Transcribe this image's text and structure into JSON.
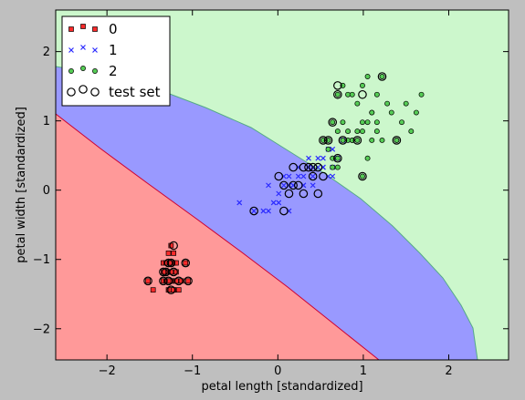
{
  "chart_data": {
    "type": "scatter",
    "title": "",
    "xlabel": "petal length [standardized]",
    "ylabel": "petal width [standardized]",
    "xlim": [
      -2.6,
      2.7
    ],
    "ylim": [
      -2.45,
      2.6
    ],
    "xticks": [
      -2,
      -1,
      0,
      1,
      2
    ],
    "yticks": [
      -2,
      -1,
      0,
      1,
      2
    ],
    "tick_labels_x": [
      "−2",
      "−1",
      "0",
      "1",
      "2"
    ],
    "tick_labels_y": [
      "−2",
      "−1",
      "0",
      "1",
      "2"
    ],
    "grid": false,
    "legend_position": "top-left",
    "decision_regions": [
      {
        "class": "0",
        "color": "#ff9999"
      },
      {
        "class": "1",
        "color": "#9999ff"
      },
      {
        "class": "2",
        "color": "#ccf7cc"
      }
    ],
    "series": [
      {
        "name": "0",
        "marker": "square",
        "color": "#ff2a2a",
        "x": [
          -1.34,
          -1.31,
          -1.28,
          -1.25,
          -1.22,
          -1.19,
          -1.16,
          -1.13,
          -1.28,
          -1.22,
          -1.31,
          -1.25,
          -1.19,
          -1.22,
          -1.28,
          -1.34,
          -1.25,
          -1.19,
          -1.28,
          -1.22,
          -1.25,
          -1.16,
          -1.52,
          -1.46,
          -1.05,
          -1.08,
          -1.25,
          -1.28,
          -1.22,
          -1.25,
          -1.19,
          -1.31,
          -1.34,
          -1.25,
          -1.22,
          -1.28
        ],
        "y": [
          -1.31,
          -1.31,
          -1.31,
          -1.31,
          -1.31,
          -1.31,
          -1.31,
          -1.31,
          -1.18,
          -1.18,
          -1.18,
          -1.18,
          -1.18,
          -1.05,
          -1.05,
          -1.05,
          -1.05,
          -1.05,
          -1.44,
          -1.44,
          -1.44,
          -1.44,
          -1.31,
          -1.44,
          -1.31,
          -1.05,
          -0.8,
          -0.91,
          -0.91,
          -1.18,
          -1.31,
          -1.05,
          -1.18,
          -1.31,
          -1.44,
          -1.31
        ]
      },
      {
        "name": "1",
        "marker": "x",
        "color": "#2a2aff",
        "x": [
          -0.45,
          -0.28,
          -0.17,
          -0.11,
          -0.05,
          0.01,
          0.07,
          0.13,
          0.18,
          0.24,
          0.3,
          0.36,
          0.41,
          0.47,
          0.53,
          0.59,
          0.64,
          0.7,
          0.76,
          0.13,
          0.24,
          0.36,
          0.47,
          0.59,
          0.3,
          0.41,
          0.53,
          0.64,
          0.07,
          0.18,
          0.3,
          0.41,
          0.53,
          0.64,
          -0.11,
          0.01,
          0.13
        ],
        "y": [
          -0.18,
          -0.3,
          -0.3,
          0.07,
          -0.18,
          -0.18,
          0.07,
          -0.3,
          0.07,
          0.2,
          0.07,
          0.33,
          0.2,
          0.46,
          0.33,
          0.59,
          0.2,
          0.46,
          0.72,
          0.2,
          0.33,
          0.46,
          0.33,
          0.2,
          0.07,
          0.07,
          0.33,
          0.33,
          0.2,
          0.07,
          0.2,
          0.33,
          0.46,
          0.59,
          -0.3,
          -0.05,
          0.07
        ]
      },
      {
        "name": "2",
        "marker": "circle",
        "color": "#55cc55",
        "x": [
          0.7,
          0.76,
          0.82,
          0.87,
          0.93,
          0.99,
          1.05,
          1.1,
          1.16,
          1.22,
          1.28,
          1.33,
          1.39,
          1.45,
          1.5,
          1.56,
          1.62,
          1.68,
          0.64,
          0.7,
          0.76,
          0.82,
          0.87,
          0.93,
          0.99,
          1.05,
          1.1,
          1.16,
          0.59,
          0.64,
          0.7,
          0.76,
          0.82,
          0.87,
          0.93,
          0.99,
          1.05,
          1.1,
          1.16,
          1.22,
          0.53,
          0.59,
          0.64,
          0.7,
          1.39,
          0.99
        ],
        "y": [
          1.38,
          1.51,
          1.38,
          1.38,
          1.25,
          1.51,
          1.64,
          1.12,
          1.38,
          1.64,
          1.25,
          1.12,
          0.72,
          0.98,
          1.25,
          0.85,
          1.12,
          1.38,
          0.98,
          0.85,
          0.98,
          0.85,
          0.72,
          0.72,
          0.85,
          0.98,
          1.12,
          0.98,
          0.59,
          0.33,
          0.46,
          0.72,
          0.72,
          0.72,
          0.85,
          0.98,
          0.46,
          0.72,
          0.85,
          0.72,
          0.72,
          0.72,
          0.46,
          0.33,
          0.72,
          0.2
        ]
      },
      {
        "name": "test set",
        "marker": "ring",
        "color": "#000000",
        "x": [
          -1.22,
          -1.28,
          -1.34,
          -1.22,
          -1.34,
          -1.28,
          -1.25,
          -1.08,
          -1.05,
          -1.52,
          -1.16,
          -1.25,
          -1.31,
          -0.28,
          0.01,
          0.07,
          0.13,
          0.18,
          0.24,
          0.3,
          0.36,
          0.41,
          0.47,
          0.53,
          0.07,
          0.18,
          0.3,
          0.41,
          0.47,
          0.7,
          0.59,
          0.64,
          0.53,
          0.7,
          0.7,
          0.99,
          1.22,
          0.93,
          1.39,
          0.99,
          0.76
        ],
        "y": [
          -0.8,
          -1.05,
          -1.18,
          -1.18,
          -1.31,
          -1.31,
          -1.44,
          -1.05,
          -1.31,
          -1.31,
          -1.31,
          -1.05,
          -1.18,
          -0.3,
          0.2,
          0.07,
          -0.05,
          0.33,
          0.07,
          -0.05,
          0.33,
          0.2,
          0.33,
          0.2,
          -0.3,
          0.07,
          0.33,
          0.33,
          -0.05,
          0.46,
          0.72,
          0.98,
          0.72,
          1.51,
          1.38,
          1.38,
          1.64,
          0.72,
          0.72,
          0.2,
          0.72
        ]
      }
    ]
  }
}
